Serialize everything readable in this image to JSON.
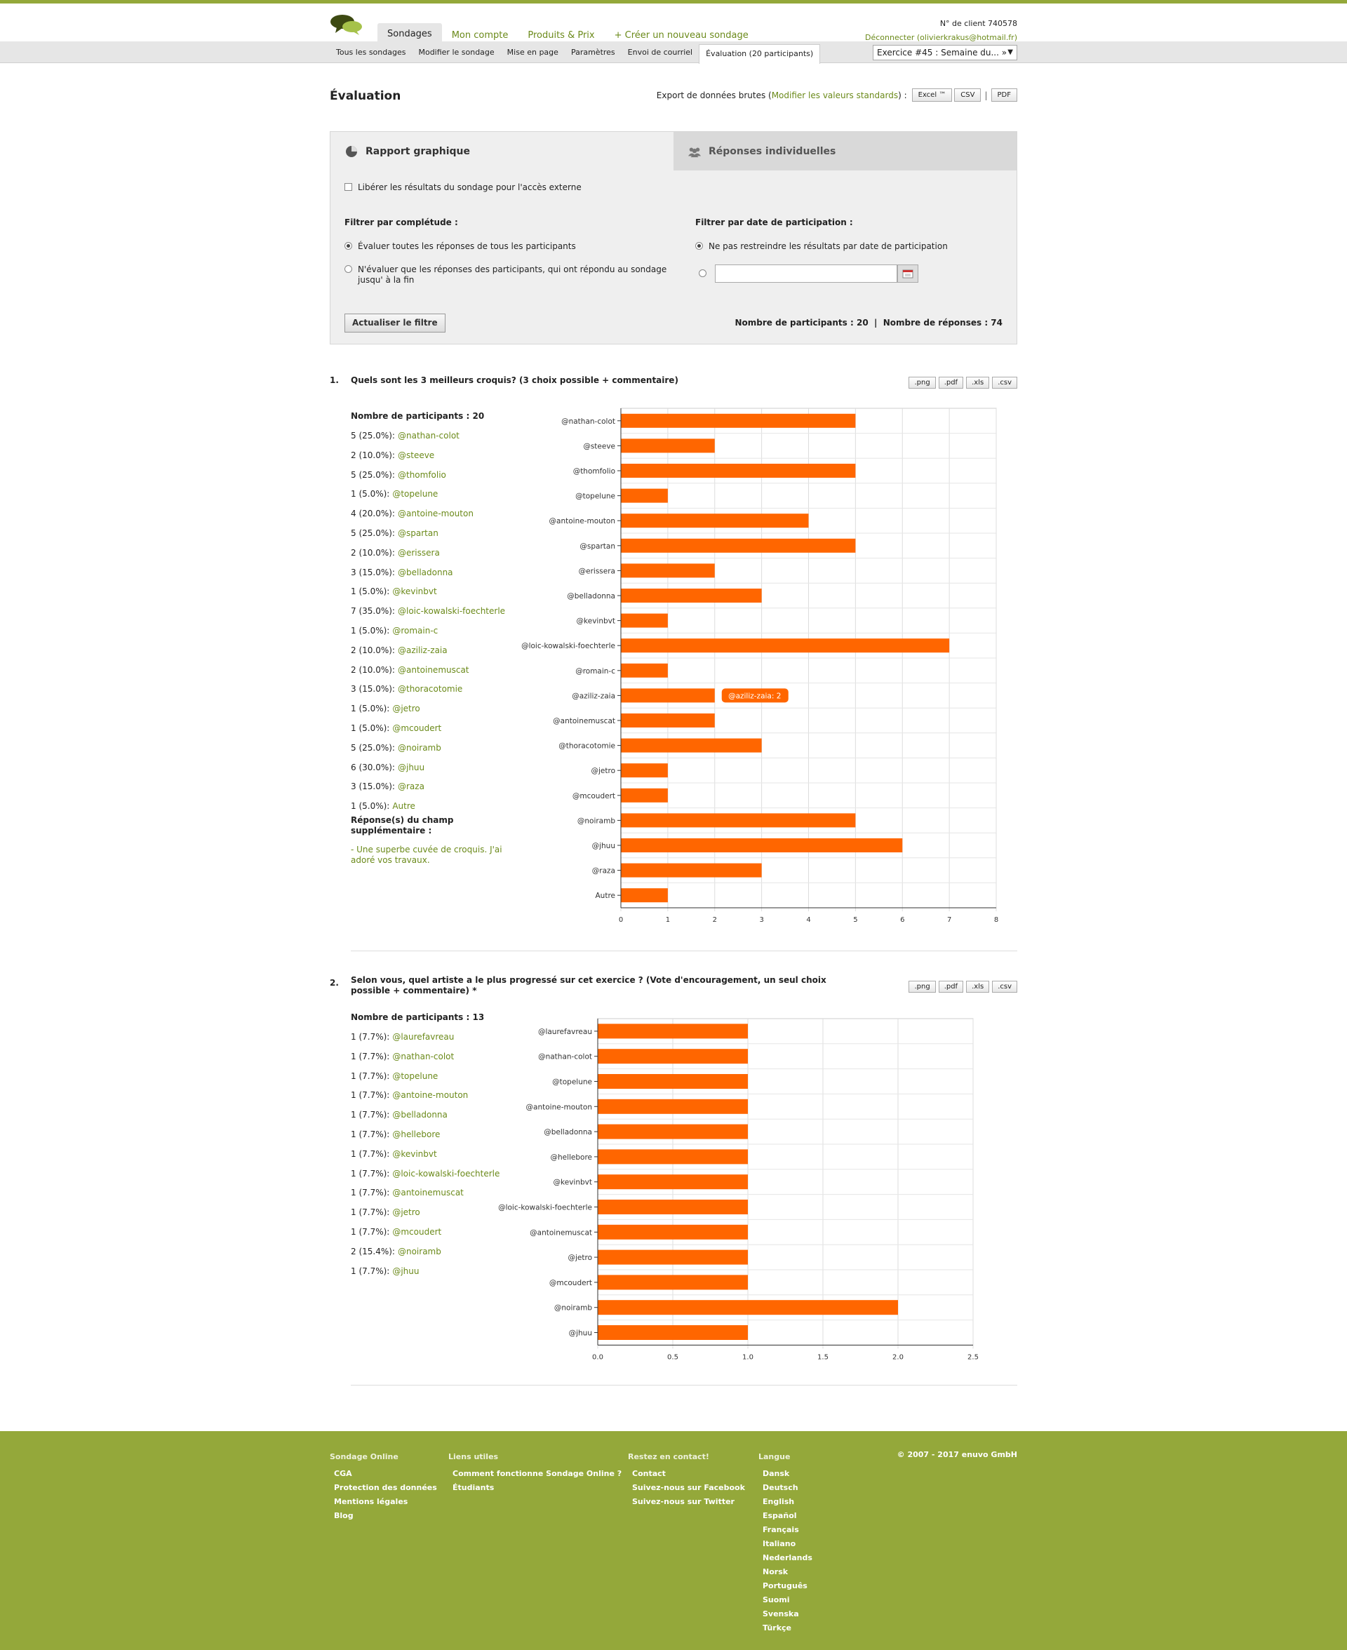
{
  "header": {
    "nav": [
      "Sondages",
      "Mon compte",
      "Produits & Prix",
      "+ Créer un nouveau sondage"
    ],
    "client_id": "N° de client 740578",
    "logout": "Déconnecter (olivierkrakus@hotmail.fr)"
  },
  "subnav": {
    "items": [
      "Tous les sondages",
      "Modifier le sondage",
      "Mise en page",
      "Paramètres",
      "Envoi de courriel",
      "Évaluation (20 participants)"
    ],
    "exercise": "Exercice #45 : Semaine du... »"
  },
  "title": "Évaluation",
  "export": {
    "label": "Export de données brutes (",
    "link": "Modifier les valeurs standards",
    "suffix": ") :",
    "buttons": [
      "Excel ™",
      "CSV",
      "PDF"
    ]
  },
  "panel": {
    "tab_graphic": "Rapport graphique",
    "tab_individual": "Réponses individuelles",
    "release": "Libérer les résultats du sondage pour l'accès externe",
    "filter_complete_title": "Filtrer par complétude :",
    "filter_complete_all": "Évaluer toutes les réponses de tous les participants",
    "filter_complete_end": "N'évaluer que les réponses des participants, qui ont répondu au sondage jusqu' à la fin",
    "filter_date_title": "Filtrer par date de participation :",
    "filter_date_none": "Ne pas restreindre les résultats par date de participation",
    "update_btn": "Actualiser le filtre",
    "counts": "Nombre de participants : 20  |  Nombre de réponses : 74"
  },
  "colors": {
    "accent": "#94a83a",
    "bar": "#ff6600",
    "link": "#6b8a1a"
  },
  "export_btns": [
    ".png",
    ".pdf",
    ".xls",
    ".csv"
  ],
  "q1": {
    "num": "1.",
    "title": "Quels sont les 3 meilleurs croquis? (3 choix possible + commentaire)",
    "participants": "Nombre de participants : 20",
    "rows": [
      {
        "count": "5 (25.0%):",
        "user": "@nathan-colot"
      },
      {
        "count": "2 (10.0%):",
        "user": "@steeve"
      },
      {
        "count": "5 (25.0%):",
        "user": "@thomfolio"
      },
      {
        "count": "1 (5.0%):",
        "user": "@topelune"
      },
      {
        "count": "4 (20.0%):",
        "user": "@antoine-mouton"
      },
      {
        "count": "5 (25.0%):",
        "user": "@spartan"
      },
      {
        "count": "2 (10.0%):",
        "user": "@erissera"
      },
      {
        "count": "3 (15.0%):",
        "user": "@belladonna"
      },
      {
        "count": "1 (5.0%):",
        "user": "@kevinbvt"
      },
      {
        "count": "7 (35.0%):",
        "user": "@loic-kowalski-foechterle"
      },
      {
        "count": "1 (5.0%):",
        "user": "@romain-c"
      },
      {
        "count": "2 (10.0%):",
        "user": "@aziliz-zaia"
      },
      {
        "count": "2 (10.0%):",
        "user": "@antoinemuscat"
      },
      {
        "count": "3 (15.0%):",
        "user": "@thoracotomie"
      },
      {
        "count": "1 (5.0%):",
        "user": "@jetro"
      },
      {
        "count": "1 (5.0%):",
        "user": "@mcoudert"
      },
      {
        "count": "5 (25.0%):",
        "user": "@noiramb"
      },
      {
        "count": "6 (30.0%):",
        "user": "@jhuu"
      },
      {
        "count": "3 (15.0%):",
        "user": "@raza"
      },
      {
        "count": "1 (5.0%):",
        "user": "Autre"
      }
    ],
    "extra_title": "Réponse(s) du champ supplémentaire :",
    "extra_answer": "- Une superbe cuvée de croquis. J'ai adoré vos travaux.",
    "tooltip": "@aziliz-zaia: 2"
  },
  "q2": {
    "num": "2.",
    "title": "Selon vous, quel artiste a le plus progressé sur cet exercice ? (Vote d'encouragement, un seul choix possible + commentaire) *",
    "participants": "Nombre de participants : 13",
    "rows": [
      {
        "count": "1 (7.7%):",
        "user": "@laurefavreau"
      },
      {
        "count": "1 (7.7%):",
        "user": "@nathan-colot"
      },
      {
        "count": "1 (7.7%):",
        "user": "@topelune"
      },
      {
        "count": "1 (7.7%):",
        "user": "@antoine-mouton"
      },
      {
        "count": "1 (7.7%):",
        "user": "@belladonna"
      },
      {
        "count": "1 (7.7%):",
        "user": "@hellebore"
      },
      {
        "count": "1 (7.7%):",
        "user": "@kevinbvt"
      },
      {
        "count": "1 (7.7%):",
        "user": "@loic-kowalski-foechterle"
      },
      {
        "count": "1 (7.7%):",
        "user": "@antoinemuscat"
      },
      {
        "count": "1 (7.7%):",
        "user": "@jetro"
      },
      {
        "count": "1 (7.7%):",
        "user": "@mcoudert"
      },
      {
        "count": "2 (15.4%):",
        "user": "@noiramb"
      },
      {
        "count": "1 (7.7%):",
        "user": "@jhuu"
      }
    ]
  },
  "chart_data": [
    {
      "type": "bar",
      "orientation": "horizontal",
      "categories": [
        "@nathan-colot",
        "@steeve",
        "@thomfolio",
        "@topelune",
        "@antoine-mouton",
        "@spartan",
        "@erissera",
        "@belladonna",
        "@kevinbvt",
        "@loic-kowalski-foechterle",
        "@romain-c",
        "@aziliz-zaia",
        "@antoinemuscat",
        "@thoracotomie",
        "@jetro",
        "@mcoudert",
        "@noiramb",
        "@jhuu",
        "@raza",
        "Autre"
      ],
      "values": [
        5,
        2,
        5,
        1,
        4,
        5,
        2,
        3,
        1,
        7,
        1,
        2,
        2,
        3,
        1,
        1,
        5,
        6,
        3,
        1
      ],
      "xlim": [
        0,
        8
      ],
      "ticks": [
        "0",
        "1",
        "2",
        "3",
        "4",
        "5",
        "6",
        "7",
        "8"
      ],
      "grid": true
    },
    {
      "type": "bar",
      "orientation": "horizontal",
      "categories": [
        "@laurefavreau",
        "@nathan-colot",
        "@topelune",
        "@antoine-mouton",
        "@belladonna",
        "@hellebore",
        "@kevinbvt",
        "@loic-kowalski-foechterle",
        "@antoinemuscat",
        "@jetro",
        "@mcoudert",
        "@noiramb",
        "@jhuu"
      ],
      "values": [
        1,
        1,
        1,
        1,
        1,
        1,
        1,
        1,
        1,
        1,
        1,
        2,
        1
      ],
      "xlim": [
        0,
        2.5
      ],
      "ticks": [
        "0.0",
        "0.5",
        "1.0",
        "1.5",
        "2.0",
        "2.5"
      ],
      "grid": true
    }
  ],
  "footer": {
    "col1": {
      "title": "Sondage Online",
      "links": [
        "CGA",
        "Protection des données",
        "Mentions légales",
        "Blog"
      ]
    },
    "col2": {
      "title": "Liens utiles",
      "links": [
        "Comment fonctionne Sondage Online ?",
        "Étudiants"
      ]
    },
    "col3": {
      "title": "Restez en contact!",
      "links": [
        "Contact",
        "Suivez-nous sur Facebook",
        "Suivez-nous sur Twitter"
      ]
    },
    "col4": {
      "title": "Langue",
      "links": [
        "Dansk",
        "Deutsch",
        "English",
        "Español",
        "Français",
        "Italiano",
        "Nederlands",
        "Norsk",
        "Português",
        "Suomi",
        "Svenska",
        "Türkçe"
      ]
    },
    "copyright": "© 2007 - 2017 enuvo GmbH"
  }
}
